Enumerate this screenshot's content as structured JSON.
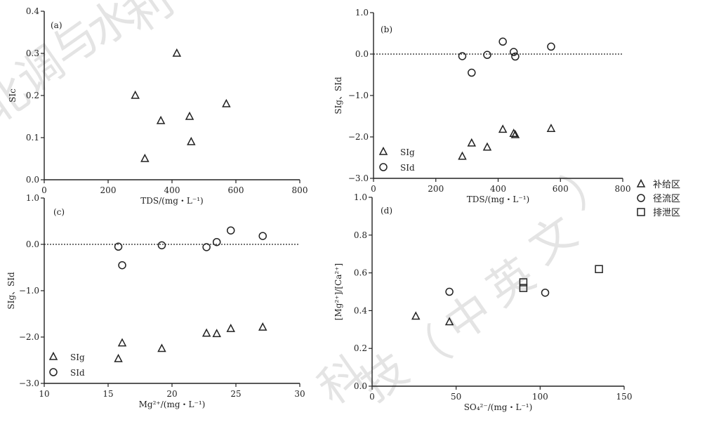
{
  "chart_data": [
    {
      "type": "scatter",
      "panel_label": "(a)",
      "xlabel": "TDS/(mg・L⁻¹)",
      "ylabel": "SIc",
      "xlim": [
        0,
        800
      ],
      "ylim": [
        0,
        0.4
      ],
      "xticks": [
        "0",
        "200",
        "400",
        "600",
        "800"
      ],
      "yticks": [
        "0.0",
        "0.1",
        "0.2",
        "0.3",
        "0.4"
      ],
      "xtick_values": [
        0,
        200,
        400,
        600,
        800
      ],
      "ytick_values": [
        0,
        0.1,
        0.2,
        0.3,
        0.4
      ],
      "grid": false,
      "series": [
        {
          "marker": "triangle",
          "points": [
            [
              285,
              0.2
            ],
            [
              315,
              0.05
            ],
            [
              365,
              0.14
            ],
            [
              415,
              0.3
            ],
            [
              455,
              0.15
            ],
            [
              460,
              0.09
            ],
            [
              570,
              0.18
            ]
          ]
        }
      ]
    },
    {
      "type": "scatter",
      "panel_label": "(b)",
      "xlabel": "TDS/(mg・L⁻¹)",
      "ylabel": "SIg、SId",
      "xlim": [
        0,
        800
      ],
      "ylim": [
        -3.0,
        1.0
      ],
      "xticks": [
        "0",
        "200",
        "400",
        "600",
        "800"
      ],
      "yticks": [
        "1.0",
        "0.0",
        "−1.0",
        "−2.0",
        "−3.0"
      ],
      "xtick_values": [
        0,
        200,
        400,
        600,
        800
      ],
      "ytick_values": [
        1.0,
        0.0,
        -1.0,
        -2.0,
        -3.0
      ],
      "reference_line": 0,
      "legend_position": "bottom-left",
      "series": [
        {
          "name": "SIg",
          "marker": "triangle",
          "points": [
            [
              285,
              -2.47
            ],
            [
              315,
              -2.15
            ],
            [
              365,
              -2.25
            ],
            [
              415,
              -1.82
            ],
            [
              450,
              -1.92
            ],
            [
              455,
              -1.95
            ],
            [
              570,
              -1.8
            ]
          ]
        },
        {
          "name": "SId",
          "marker": "circle",
          "points": [
            [
              285,
              -0.05
            ],
            [
              315,
              -0.45
            ],
            [
              365,
              -0.02
            ],
            [
              415,
              0.3
            ],
            [
              450,
              0.05
            ],
            [
              455,
              -0.06
            ],
            [
              570,
              0.18
            ]
          ]
        }
      ]
    },
    {
      "type": "scatter",
      "panel_label": "(c)",
      "xlabel": "Mg²⁺/(mg・L⁻¹)",
      "ylabel": "SIg、SId",
      "xlim": [
        10,
        30
      ],
      "ylim": [
        -3.0,
        1.0
      ],
      "xticks": [
        "10",
        "15",
        "20",
        "25",
        "30"
      ],
      "yticks": [
        "1.0",
        "0.0",
        "−1.0",
        "−2.0",
        "−3.0"
      ],
      "xtick_values": [
        10,
        15,
        20,
        25,
        30
      ],
      "ytick_values": [
        1.0,
        0.0,
        -1.0,
        -2.0,
        -3.0
      ],
      "reference_line": 0,
      "legend_position": "bottom-left",
      "series": [
        {
          "name": "SIg",
          "marker": "triangle",
          "points": [
            [
              15.8,
              -2.47
            ],
            [
              16.1,
              -2.13
            ],
            [
              19.2,
              -2.25
            ],
            [
              22.7,
              -1.92
            ],
            [
              23.5,
              -1.93
            ],
            [
              24.6,
              -1.82
            ],
            [
              27.1,
              -1.79
            ]
          ]
        },
        {
          "name": "SId",
          "marker": "circle",
          "points": [
            [
              15.8,
              -0.05
            ],
            [
              16.1,
              -0.45
            ],
            [
              19.2,
              -0.02
            ],
            [
              22.7,
              -0.06
            ],
            [
              23.5,
              0.05
            ],
            [
              24.6,
              0.3
            ],
            [
              27.1,
              0.18
            ]
          ]
        }
      ]
    },
    {
      "type": "scatter",
      "panel_label": "(d)",
      "xlabel": "SO₄²⁻/(mg・L⁻¹)",
      "ylabel": "[Mg²⁺]/[Ca²⁺]",
      "xlim": [
        0,
        150
      ],
      "ylim": [
        0,
        1.0
      ],
      "xticks": [
        "0",
        "50",
        "100",
        "150"
      ],
      "yticks": [
        "0.0",
        "0.2",
        "0.4",
        "0.6",
        "0.8",
        "1.0"
      ],
      "xtick_values": [
        0,
        50,
        100,
        150
      ],
      "ytick_values": [
        0,
        0.2,
        0.4,
        0.6,
        0.8,
        1.0
      ],
      "series": [
        {
          "name": "补给区",
          "marker": "triangle",
          "points": [
            [
              26,
              0.37
            ],
            [
              46,
              0.34
            ]
          ]
        },
        {
          "name": "径流区",
          "marker": "circle",
          "points": [
            [
              46,
              0.5
            ],
            [
              103,
              0.495
            ]
          ]
        },
        {
          "name": "排泄区",
          "marker": "square",
          "points": [
            [
              90,
              0.55
            ],
            [
              90,
              0.52
            ],
            [
              135,
              0.62
            ]
          ]
        }
      ]
    }
  ],
  "shared_legend": [
    {
      "label": "补给区",
      "marker": "triangle"
    },
    {
      "label": "径流区",
      "marker": "circle"
    },
    {
      "label": "排泄区",
      "marker": "square"
    }
  ],
  "watermark": "北调与水利科技（中英文）"
}
